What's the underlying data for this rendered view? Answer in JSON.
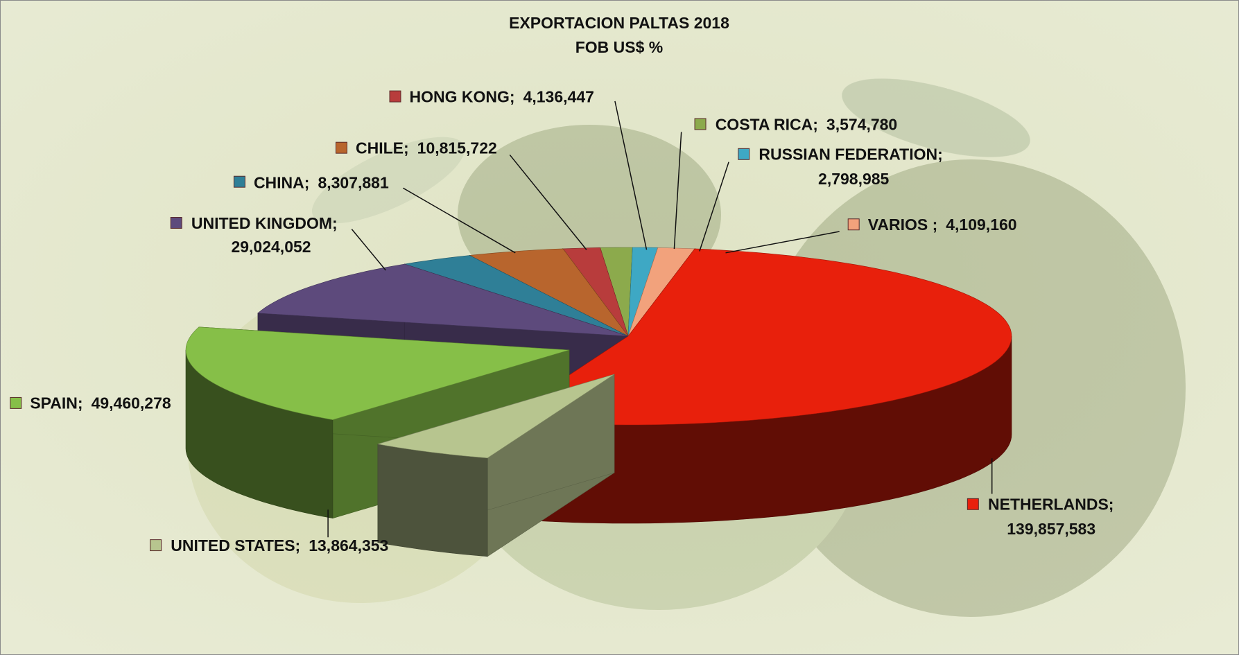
{
  "chart_data": {
    "type": "pie3d",
    "title": "EXPORTACION  PALTAS 2018",
    "subtitle": "FOB US$ %",
    "categories": [
      "NETHERLANDS;",
      "UNITED STATES;",
      "SPAIN;",
      "UNITED KINGDOM;",
      "CHINA;",
      "CHILE;",
      "HONG KONG;",
      "COSTA RICA;",
      "RUSSIAN FEDERATION;",
      "VARIOS ;"
    ],
    "values": [
      139857583,
      13864353,
      49460278,
      29024052,
      8307881,
      10815722,
      4136447,
      3574780,
      2798985,
      4109160
    ],
    "value_labels": [
      "139,857,583",
      "13,864,353",
      "49,460,278",
      "29,024,052",
      "8,307,881",
      "10,815,722",
      "4,136,447",
      "3,574,780",
      "2,798,985",
      "4,109,160"
    ],
    "colors": [
      "#e8200c",
      "#b7c58f",
      "#86bf48",
      "#5d4a7c",
      "#2f7f97",
      "#b8652d",
      "#b83c3c",
      "#8caa4c",
      "#3ea8c4",
      "#f2a27c"
    ]
  }
}
